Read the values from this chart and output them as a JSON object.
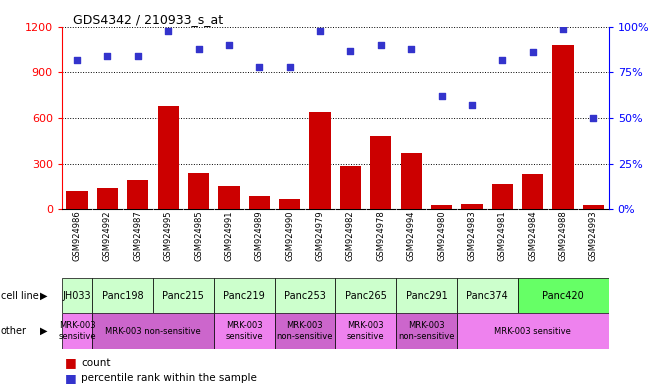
{
  "title": "GDS4342 / 210933_s_at",
  "samples": [
    "GSM924986",
    "GSM924992",
    "GSM924987",
    "GSM924995",
    "GSM924985",
    "GSM924991",
    "GSM924989",
    "GSM924990",
    "GSM924979",
    "GSM924982",
    "GSM924978",
    "GSM924994",
    "GSM924980",
    "GSM924983",
    "GSM924981",
    "GSM924984",
    "GSM924988",
    "GSM924993"
  ],
  "counts": [
    120,
    140,
    190,
    680,
    240,
    155,
    90,
    70,
    640,
    285,
    480,
    370,
    30,
    35,
    165,
    230,
    1080,
    30
  ],
  "percentiles": [
    82,
    84,
    84,
    98,
    88,
    90,
    78,
    78,
    98,
    87,
    90,
    88,
    62,
    57,
    82,
    86,
    99,
    50
  ],
  "cell_lines": [
    {
      "name": "JH033",
      "start": 0,
      "end": 1,
      "color": "#ccffcc"
    },
    {
      "name": "Panc198",
      "start": 1,
      "end": 3,
      "color": "#ccffcc"
    },
    {
      "name": "Panc215",
      "start": 3,
      "end": 5,
      "color": "#ccffcc"
    },
    {
      "name": "Panc219",
      "start": 5,
      "end": 7,
      "color": "#ccffcc"
    },
    {
      "name": "Panc253",
      "start": 7,
      "end": 9,
      "color": "#ccffcc"
    },
    {
      "name": "Panc265",
      "start": 9,
      "end": 11,
      "color": "#ccffcc"
    },
    {
      "name": "Panc291",
      "start": 11,
      "end": 13,
      "color": "#ccffcc"
    },
    {
      "name": "Panc374",
      "start": 13,
      "end": 15,
      "color": "#ccffcc"
    },
    {
      "name": "Panc420",
      "start": 15,
      "end": 18,
      "color": "#66ff66"
    }
  ],
  "other_groups": [
    {
      "name": "MRK-003\nsensitive",
      "start": 0,
      "end": 1,
      "color": "#ee82ee"
    },
    {
      "name": "MRK-003 non-sensitive",
      "start": 1,
      "end": 5,
      "color": "#cc66cc"
    },
    {
      "name": "MRK-003\nsensitive",
      "start": 5,
      "end": 7,
      "color": "#ee82ee"
    },
    {
      "name": "MRK-003\nnon-sensitive",
      "start": 7,
      "end": 9,
      "color": "#cc66cc"
    },
    {
      "name": "MRK-003\nsensitive",
      "start": 9,
      "end": 11,
      "color": "#ee82ee"
    },
    {
      "name": "MRK-003\nnon-sensitive",
      "start": 11,
      "end": 13,
      "color": "#cc66cc"
    },
    {
      "name": "MRK-003 sensitive",
      "start": 13,
      "end": 18,
      "color": "#ee82ee"
    }
  ],
  "bar_color": "#cc0000",
  "dot_color": "#3333cc",
  "ylim_left": [
    0,
    1200
  ],
  "ylim_right": [
    0,
    100
  ],
  "yticks_left": [
    0,
    300,
    600,
    900,
    1200
  ],
  "yticks_right": [
    0,
    25,
    50,
    75,
    100
  ],
  "bar_width": 0.7,
  "label_left": "cell line",
  "label_other": "other",
  "legend_count": "count",
  "legend_pct": "percentile rank within the sample",
  "xticklabel_bg": "#d8d8d8"
}
